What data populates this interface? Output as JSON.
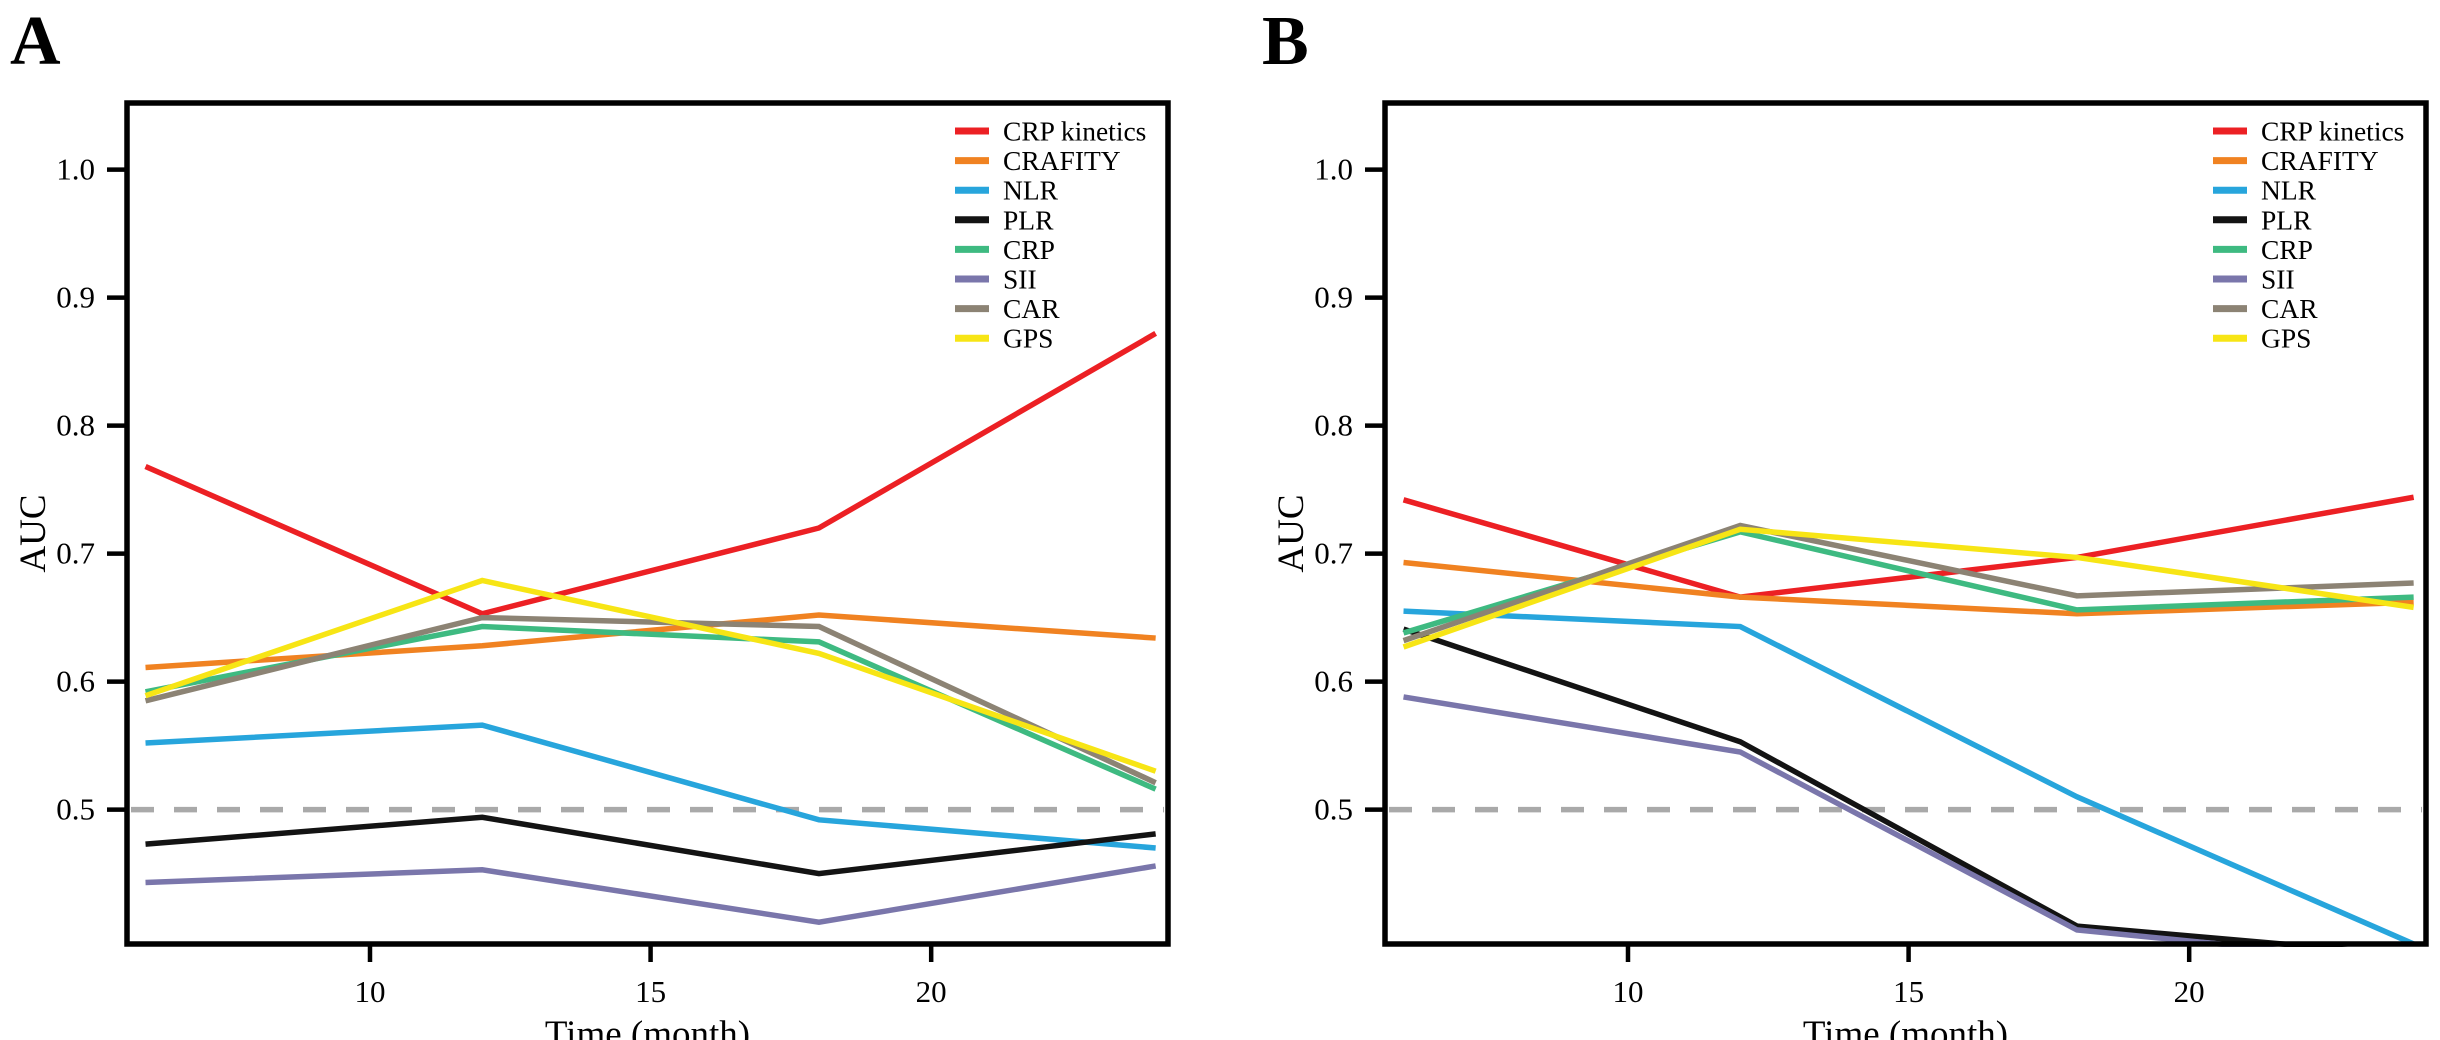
{
  "figure": {
    "background": "#ffffff",
    "panels": [
      {
        "letter": "A"
      },
      {
        "letter": "B"
      }
    ]
  },
  "axes": {
    "y_label": "AUC",
    "x_label": "Time (month)",
    "y_ticks": [
      "1.0",
      "0.9",
      "0.8",
      "0.7",
      "0.6",
      "0.5"
    ],
    "y_tick_values": [
      1.0,
      0.9,
      0.8,
      0.7,
      0.6,
      0.5
    ],
    "x_ticks": [
      "10",
      "15",
      "20"
    ],
    "x_tick_values": [
      10,
      15,
      20
    ],
    "xlim": [
      5.67,
      24.22
    ],
    "ylim": [
      0.395,
      1.052
    ],
    "reference_line_y": 0.5,
    "reference_line_color": "#a9a9a9",
    "axis_color": "#000000",
    "grid": false,
    "legend_position": "top-right-inside"
  },
  "legend": {
    "entries": [
      {
        "label": "CRP kinetics",
        "color": "#ec2024"
      },
      {
        "label": "CRAFITY",
        "color": "#f08221"
      },
      {
        "label": "NLR",
        "color": "#27a5dc"
      },
      {
        "label": "PLR",
        "color": "#131313"
      },
      {
        "label": "CRP",
        "color": "#3eba81"
      },
      {
        "label": "SII",
        "color": "#7a76ab"
      },
      {
        "label": "CAR",
        "color": "#8c8374"
      },
      {
        "label": "GPS",
        "color": "#f7e515"
      }
    ]
  },
  "chart_data": [
    {
      "type": "line",
      "panel": "A",
      "title": "",
      "xlabel": "Time (month)",
      "ylabel": "AUC",
      "x": [
        6,
        12,
        18,
        24
      ],
      "xlim": [
        5.67,
        24.22
      ],
      "ylim": [
        0.395,
        1.052
      ],
      "reference_line": 0.5,
      "series": [
        {
          "name": "CRP kinetics",
          "color": "#ec2024",
          "values": [
            0.768,
            0.653,
            0.72,
            0.872
          ]
        },
        {
          "name": "CRAFITY",
          "color": "#f08221",
          "values": [
            0.611,
            0.628,
            0.652,
            0.634
          ]
        },
        {
          "name": "NLR",
          "color": "#27a5dc",
          "values": [
            0.552,
            0.566,
            0.492,
            0.47
          ]
        },
        {
          "name": "PLR",
          "color": "#131313",
          "values": [
            0.473,
            0.494,
            0.45,
            0.481
          ]
        },
        {
          "name": "CRP",
          "color": "#3eba81",
          "values": [
            0.592,
            0.643,
            0.631,
            0.516
          ]
        },
        {
          "name": "SII",
          "color": "#7a76ab",
          "values": [
            0.443,
            0.453,
            0.412,
            0.456
          ]
        },
        {
          "name": "CAR",
          "color": "#8c8374",
          "values": [
            0.585,
            0.65,
            0.643,
            0.521
          ]
        },
        {
          "name": "GPS",
          "color": "#f7e515",
          "values": [
            0.589,
            0.679,
            0.622,
            0.53
          ]
        }
      ]
    },
    {
      "type": "line",
      "panel": "B",
      "title": "",
      "xlabel": "Time (month)",
      "ylabel": "AUC",
      "x": [
        6,
        12,
        18,
        24
      ],
      "xlim": [
        5.67,
        24.22
      ],
      "ylim": [
        0.395,
        1.052
      ],
      "reference_line": 0.5,
      "series": [
        {
          "name": "CRP kinetics",
          "color": "#ec2024",
          "values": [
            0.742,
            0.666,
            0.697,
            0.744
          ]
        },
        {
          "name": "CRAFITY",
          "color": "#f08221",
          "values": [
            0.693,
            0.666,
            0.653,
            0.662
          ]
        },
        {
          "name": "NLR",
          "color": "#27a5dc",
          "values": [
            0.655,
            0.643,
            0.51,
            0.395
          ]
        },
        {
          "name": "PLR",
          "color": "#131313",
          "values": [
            0.641,
            0.553,
            0.409,
            0.386
          ]
        },
        {
          "name": "CRP",
          "color": "#3eba81",
          "values": [
            0.638,
            0.717,
            0.656,
            0.666
          ]
        },
        {
          "name": "SII",
          "color": "#7a76ab",
          "values": [
            0.588,
            0.545,
            0.406,
            0.38
          ]
        },
        {
          "name": "CAR",
          "color": "#8c8374",
          "values": [
            0.632,
            0.722,
            0.667,
            0.677
          ]
        },
        {
          "name": "GPS",
          "color": "#f7e515",
          "values": [
            0.627,
            0.719,
            0.697,
            0.658
          ]
        }
      ]
    }
  ]
}
